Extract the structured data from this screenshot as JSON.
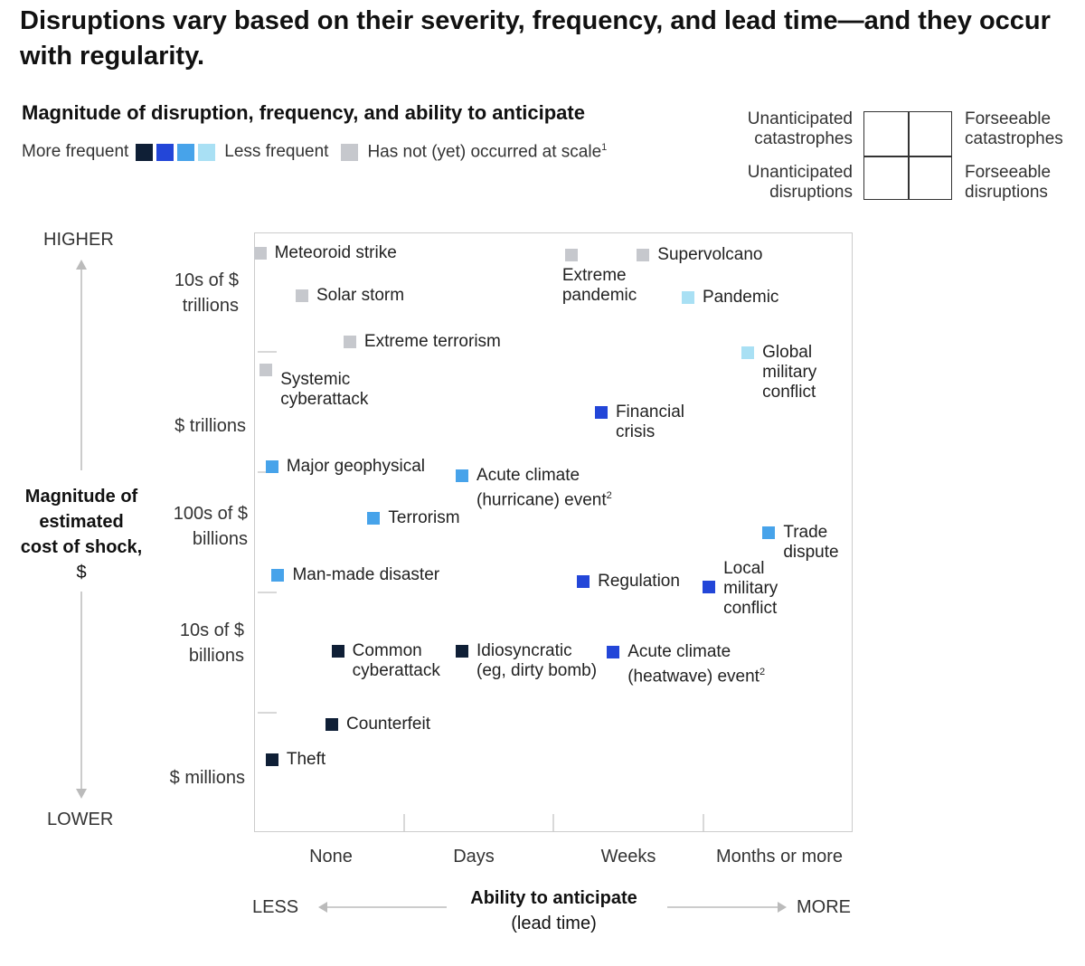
{
  "title": "Disruptions vary based on their severity, frequency, and lead time—and they occur with regularity.",
  "subtitle": "Magnitude of disruption, frequency, and ability to anticipate",
  "legend": {
    "more_frequent": "More frequent",
    "less_frequent": "Less frequent",
    "not_occurred": "Has not (yet) occurred at scale",
    "not_occurred_note": "1"
  },
  "colors": {
    "freq1": "#0f1f36",
    "freq2": "#2346d8",
    "freq3": "#47a3ea",
    "freq4": "#a9e0f4",
    "not_occurred": "#c6c8cd"
  },
  "quadrant_legend": {
    "top_left": "Unanticipated catastrophes",
    "top_right": "Forseeable catastrophes",
    "bottom_left": "Unanticipated disruptions",
    "bottom_right": "Forseeable disruptions"
  },
  "axes": {
    "y_higher": "HIGHER",
    "y_lower": "LOWER",
    "y_title_bold": "Magnitude of estimated cost of shock,",
    "y_title_unit": "$",
    "y_ticks": [
      "10s of $ trillions",
      "$ trillions",
      "100s of $ billions",
      "10s of $ billions",
      "$ millions"
    ],
    "x_ticks": [
      "None",
      "Days",
      "Weeks",
      "Months or more"
    ],
    "x_less": "LESS",
    "x_more": "MORE",
    "x_title": "Ability to anticipate",
    "x_subtitle": "(lead time)"
  },
  "chart_data": {
    "type": "scatter",
    "title": "Magnitude of disruption, frequency, and ability to anticipate",
    "xlabel": "Ability to anticipate (lead time)",
    "ylabel": "Magnitude of estimated cost of shock, $",
    "x_categories": [
      "None",
      "Days",
      "Weeks",
      "Months or more"
    ],
    "y_categories": [
      "$ millions",
      "10s of $ billions",
      "100s of $ billions",
      "$ trillions",
      "10s of $ trillions"
    ],
    "x_range": [
      0,
      4
    ],
    "y_range": [
      0,
      5
    ],
    "points": [
      {
        "label": "Meteoroid strike",
        "x": 0.04,
        "y": 4.83,
        "freq": "not_occurred"
      },
      {
        "label": "Solar storm",
        "x": 0.32,
        "y": 4.47,
        "freq": "not_occurred"
      },
      {
        "label": "Extreme terrorism",
        "x": 0.64,
        "y": 4.09,
        "freq": "not_occurred"
      },
      {
        "label": "Systemic cyberattack",
        "x": 0.08,
        "y": 3.85,
        "freq": "not_occurred"
      },
      {
        "label": "Extreme pandemic",
        "x": 2.12,
        "y": 4.81,
        "freq": "not_occurred"
      },
      {
        "label": "Supervolcano",
        "x": 2.6,
        "y": 4.81,
        "freq": "not_occurred"
      },
      {
        "label": "Pandemic",
        "x": 2.9,
        "y": 4.46,
        "freq": "4"
      },
      {
        "label": "Global military conflict",
        "x": 3.3,
        "y": 4.0,
        "freq": "4"
      },
      {
        "label": "Financial crisis",
        "x": 2.32,
        "y": 3.5,
        "freq": "2"
      },
      {
        "label": "Major geophysical",
        "x": 0.12,
        "y": 3.05,
        "freq": "3"
      },
      {
        "label": "Acute climate (hurricane) event",
        "label_note": "2",
        "x": 1.39,
        "y": 2.97,
        "freq": "3"
      },
      {
        "label": "Terrorism",
        "x": 0.8,
        "y": 2.62,
        "freq": "3"
      },
      {
        "label": "Trade dispute",
        "x": 3.44,
        "y": 2.5,
        "freq": "3"
      },
      {
        "label": "Man-made disaster",
        "x": 0.16,
        "y": 2.14,
        "freq": "3"
      },
      {
        "label": "Regulation",
        "x": 2.2,
        "y": 2.09,
        "freq": "2"
      },
      {
        "label": "Local military conflict",
        "x": 3.04,
        "y": 2.04,
        "freq": "2"
      },
      {
        "label": "Common cyberattack",
        "x": 0.56,
        "y": 1.51,
        "freq": "1"
      },
      {
        "label": "Idiosyncratic (eg, dirty bomb)",
        "x": 1.39,
        "y": 1.51,
        "freq": "1"
      },
      {
        "label": "Acute climate (heatwave) event",
        "label_note": "2",
        "x": 2.4,
        "y": 1.5,
        "freq": "2"
      },
      {
        "label": "Counterfeit",
        "x": 0.52,
        "y": 0.9,
        "freq": "1"
      },
      {
        "label": "Theft",
        "x": 0.12,
        "y": 0.6,
        "freq": "1"
      }
    ]
  }
}
